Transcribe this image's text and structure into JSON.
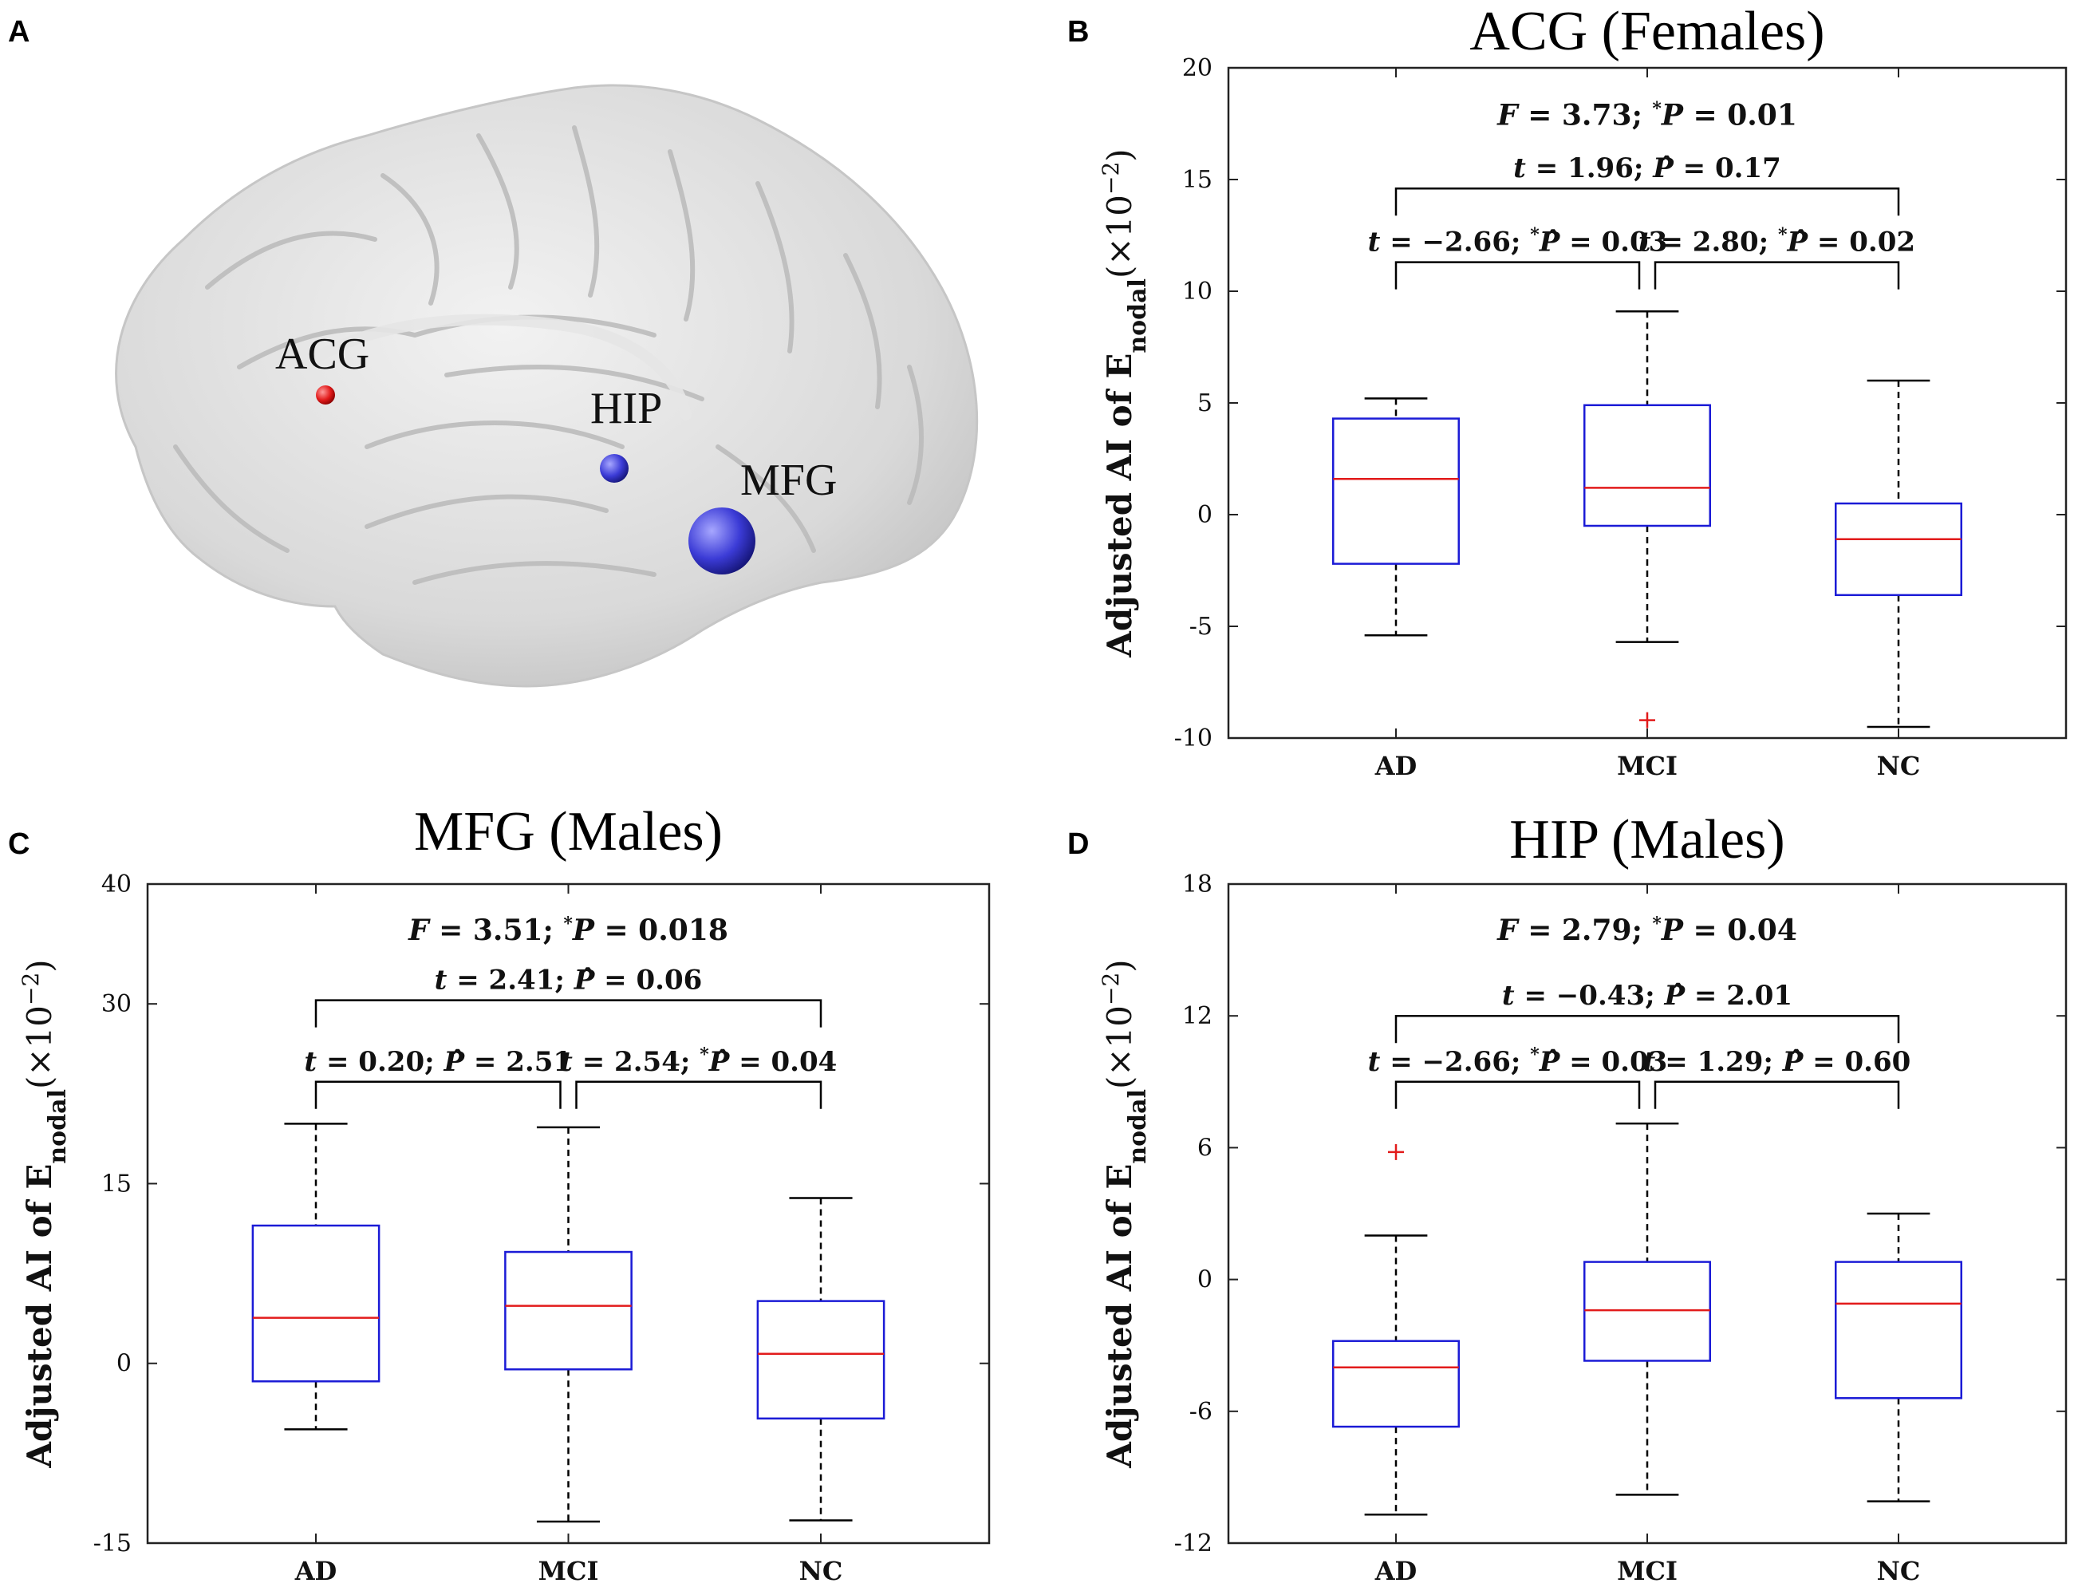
{
  "panel_a": {
    "letter": "A",
    "regions": [
      {
        "label": "ACG",
        "color": "#e21b1b"
      },
      {
        "label": "HIP",
        "color": "#3b3bd6"
      },
      {
        "label": "MFG",
        "color": "#3b3bd6"
      }
    ]
  },
  "chart_data": [
    {
      "panel": "B",
      "type": "box",
      "title": "ACG (Females)",
      "ylabel": "Adjusted AI of E",
      "ylabel_sub": "nodal",
      "ylabel_scale": "(×10",
      "ylabel_exp": "−2",
      "ylabel_close": ")",
      "ylim": [
        -10,
        20
      ],
      "yticks": [
        -10,
        -5,
        0,
        5,
        10,
        15,
        20
      ],
      "categories": [
        "AD",
        "MCI",
        "NC"
      ],
      "boxes": [
        {
          "whisker_low": -5.4,
          "q1": -2.2,
          "median": 1.6,
          "q3": 4.3,
          "whisker_high": 5.2,
          "outliers": []
        },
        {
          "whisker_low": -5.7,
          "q1": -0.5,
          "median": 1.2,
          "q3": 4.9,
          "whisker_high": 9.1,
          "outliers": [
            -9.2
          ]
        },
        {
          "whisker_low": -9.5,
          "q1": -3.6,
          "median": -1.1,
          "q3": 0.5,
          "whisker_high": 6.0,
          "outliers": []
        }
      ],
      "stats": {
        "f_text": "F = 3.73; *P = 0.01",
        "brackets": [
          {
            "from": 0,
            "to": 2,
            "level": 14.6,
            "text": "t = 1.96; P̂ = 0.17"
          },
          {
            "from": 0,
            "to": 1,
            "level": 11.3,
            "text": "t = −2.66; *P̂ = 0.03"
          },
          {
            "from": 1,
            "to": 2,
            "level": 11.3,
            "text": "t = 2.80; *P̂ = 0.02"
          }
        ]
      }
    },
    {
      "panel": "C",
      "type": "box",
      "title": "MFG (Males)",
      "ylabel": "Adjusted AI of E",
      "ylabel_sub": "nodal",
      "ylabel_scale": "(×10",
      "ylabel_exp": "−2",
      "ylabel_close": ")",
      "ylim": [
        -15,
        40
      ],
      "yticks": [
        -15,
        0,
        15,
        30,
        40
      ],
      "categories": [
        "AD",
        "MCI",
        "NC"
      ],
      "boxes": [
        {
          "whisker_low": -5.5,
          "q1": -1.5,
          "median": 3.8,
          "q3": 11.5,
          "whisker_high": 20.0,
          "outliers": []
        },
        {
          "whisker_low": -13.2,
          "q1": -0.5,
          "median": 4.8,
          "q3": 9.3,
          "whisker_high": 19.7,
          "outliers": []
        },
        {
          "whisker_low": -13.1,
          "q1": -4.6,
          "median": 0.8,
          "q3": 5.2,
          "whisker_high": 13.8,
          "outliers": []
        }
      ],
      "stats": {
        "f_text": "F = 3.51; *P = 0.018",
        "brackets": [
          {
            "from": 0,
            "to": 2,
            "level": 30.3,
            "text": "t = 2.41; P̂ = 0.06"
          },
          {
            "from": 0,
            "to": 1,
            "level": 23.5,
            "text": "t = 0.20; P̂ = 2.51"
          },
          {
            "from": 1,
            "to": 2,
            "level": 23.5,
            "text": "t = 2.54; *P̂ = 0.04"
          }
        ]
      }
    },
    {
      "panel": "D",
      "type": "box",
      "title": "HIP (Males)",
      "ylabel": "Adjusted AI of E",
      "ylabel_sub": "nodal",
      "ylabel_scale": "(×10",
      "ylabel_exp": "−2",
      "ylabel_close": ")",
      "ylim": [
        -12,
        18
      ],
      "yticks": [
        -12,
        -6,
        0,
        6,
        12,
        18
      ],
      "categories": [
        "AD",
        "MCI",
        "NC"
      ],
      "boxes": [
        {
          "whisker_low": -10.7,
          "q1": -6.7,
          "median": -4.0,
          "q3": -2.8,
          "whisker_high": 2.0,
          "outliers": [
            5.8
          ]
        },
        {
          "whisker_low": -9.8,
          "q1": -3.7,
          "median": -1.4,
          "q3": 0.8,
          "whisker_high": 7.1,
          "outliers": []
        },
        {
          "whisker_low": -10.1,
          "q1": -5.4,
          "median": -1.1,
          "q3": 0.8,
          "whisker_high": 3.0,
          "outliers": []
        }
      ],
      "stats": {
        "f_text": "F = 2.79; *P = 0.04",
        "brackets": [
          {
            "from": 0,
            "to": 2,
            "level": 12.0,
            "text": "t = −0.43; P̂ = 2.01"
          },
          {
            "from": 0,
            "to": 1,
            "level": 9.0,
            "text": "t = −2.66; *P̂ = 0.03"
          },
          {
            "from": 1,
            "to": 2,
            "level": 9.0,
            "text": "t = 1.29; P̂ = 0.60"
          }
        ]
      }
    }
  ],
  "colors": {
    "box": "#1b1bd6",
    "median": "#e21b1b",
    "outlier": "#e21b1b",
    "axis": "#222222"
  }
}
